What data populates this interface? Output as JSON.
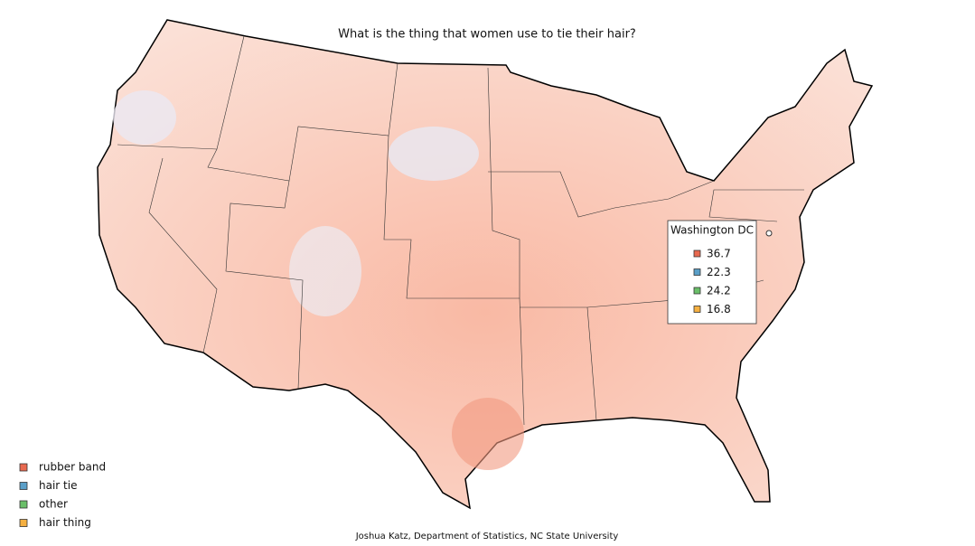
{
  "title": "What is the thing that women use to tie their hair?",
  "legend": [
    {
      "label": "rubber band",
      "color": "#e8694f"
    },
    {
      "label": "hair tie",
      "color": "#5a9fc8"
    },
    {
      "label": "other",
      "color": "#6abf69"
    },
    {
      "label": "hair thing",
      "color": "#f5b041"
    }
  ],
  "tooltip": {
    "title": "Washington DC",
    "values": [
      36.7,
      22.3,
      24.2,
      16.8
    ]
  },
  "credit": "Joshua Katz, Department of Statistics, NC State University"
}
